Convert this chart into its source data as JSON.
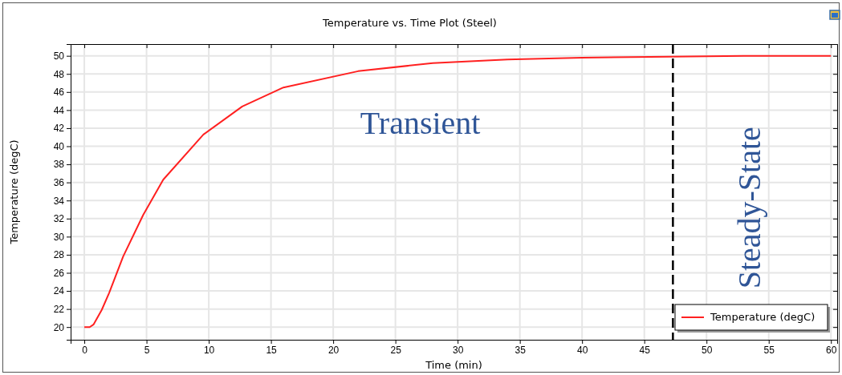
{
  "chart_data": {
    "type": "line",
    "title": "Temperature vs. Time Plot (Steel)",
    "xlabel": "Time (min)",
    "ylabel": "Temperature (degC)",
    "x": [
      0,
      0.43,
      0.75,
      1.4,
      2,
      3.12,
      4.73,
      6.34,
      9.57,
      12.69,
      16,
      22,
      28,
      34,
      40,
      47,
      53,
      60
    ],
    "series": [
      {
        "name": "Temperature (degC)",
        "color": "#ff2020",
        "values": [
          20,
          20,
          20.3,
          21.9,
          23.8,
          27.8,
          32.4,
          36.3,
          41.3,
          44.4,
          46.5,
          48.3,
          49.2,
          49.6,
          49.8,
          49.9,
          50,
          50
        ]
      }
    ],
    "xlim": [
      -1.1,
      60.5
    ],
    "ylim": [
      18.6,
      51.3
    ],
    "xticks": [
      0,
      5,
      10,
      15,
      20,
      25,
      30,
      35,
      40,
      45,
      50,
      55,
      60
    ],
    "yticks": [
      20,
      22,
      24,
      26,
      28,
      30,
      32,
      34,
      36,
      38,
      40,
      42,
      44,
      46,
      48,
      50
    ],
    "grid": true,
    "legend": "bottom right",
    "line_style": "solid",
    "marker": "none",
    "ref_lines": [
      {
        "axis": "x",
        "value": 47.3,
        "color": "#000000",
        "line_style": "dashed"
      }
    ],
    "annotations": [
      "Transient",
      "Steady-State"
    ]
  }
}
